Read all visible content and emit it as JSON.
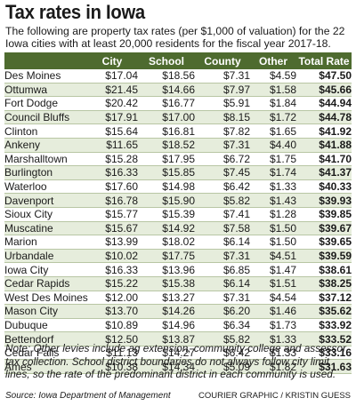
{
  "title": "Tax rates in Iowa",
  "subtitle": "The following are property tax rates (per $1,000 of valuation) for the 22 Iowa cities with at least 20,000 residents for the fiscal year 2017-18.",
  "colors": {
    "header_bg": "#4e6b2f",
    "alt_row": "#e6eddc",
    "header_text": "#ffffff"
  },
  "chart_data": {
    "type": "table",
    "columns": [
      "",
      "City",
      "School",
      "County",
      "Other",
      "Total Rate"
    ],
    "rows": [
      [
        "Des Moines",
        "$17.04",
        "$18.56",
        "$7.31",
        "$4.59",
        "$47.50"
      ],
      [
        "Ottumwa",
        "$21.45",
        "$14.66",
        "$7.97",
        "$1.58",
        "$45.66"
      ],
      [
        "Fort Dodge",
        "$20.42",
        "$16.77",
        "$5.91",
        "$1.84",
        "$44.94"
      ],
      [
        "Council Bluffs",
        "$17.91",
        "$17.00",
        "$8.15",
        "$1.72",
        "$44.78"
      ],
      [
        "Clinton",
        "$15.64",
        "$16.81",
        "$7.82",
        "$1.65",
        "$41.92"
      ],
      [
        "Ankeny",
        "$11.65",
        "$18.52",
        "$7.31",
        "$4.40",
        "$41.88"
      ],
      [
        "Marshalltown",
        "$15.28",
        "$17.95",
        "$6.72",
        "$1.75",
        "$41.70"
      ],
      [
        "Burlington",
        "$16.33",
        "$15.85",
        "$7.45",
        "$1.74",
        "$41.37"
      ],
      [
        "Waterloo",
        "$17.60",
        "$14.98",
        "$6.42",
        "$1.33",
        "$40.33"
      ],
      [
        "Davenport",
        "$16.78",
        "$15.90",
        "$5.82",
        "$1.43",
        "$39.93"
      ],
      [
        "Sioux City",
        "$15.77",
        "$15.39",
        "$7.41",
        "$1.28",
        "$39.85"
      ],
      [
        "Muscatine",
        "$15.67",
        "$14.92",
        "$7.58",
        "$1.50",
        "$39.67"
      ],
      [
        "Marion",
        "$13.99",
        "$18.02",
        "$6.14",
        "$1.50",
        "$39.65"
      ],
      [
        "Urbandale",
        "$10.02",
        "$17.75",
        "$7.31",
        "$4.51",
        "$39.59"
      ],
      [
        "Iowa City",
        "$16.33",
        "$13.96",
        "$6.85",
        "$1.47",
        "$38.61"
      ],
      [
        "Cedar Rapids",
        "$15.22",
        "$15.38",
        "$6.14",
        "$1.51",
        "$38.25"
      ],
      [
        "West Des Moines",
        "$12.00",
        "$13.27",
        "$7.31",
        "$4.54",
        "$37.12"
      ],
      [
        "Mason City",
        "$13.70",
        "$14.26",
        "$6.20",
        "$1.46",
        "$35.62"
      ],
      [
        "Dubuque",
        "$10.89",
        "$14.96",
        "$6.34",
        "$1.73",
        "$33.92"
      ],
      [
        "Bettendorf",
        "$12.50",
        "$13.87",
        "$5.82",
        "$1.33",
        "$33.52"
      ],
      [
        "Cedar Falls",
        "$11.13",
        "$14.27",
        "$6.42",
        "$1.33",
        "$33.16"
      ],
      [
        "Ames",
        "$10.38",
        "$14.34",
        "$5.09",
        "$1.82",
        "$31.63"
      ]
    ]
  },
  "note": "Note: Other levies include ag extension, community college and assessor tax collection. School district boundaries do not always follow city limit lines, so the rate of the predominant district in each community is used.",
  "source": "Source: Iowa Department of Management",
  "credit": "COURIER GRAPHIC / KRISTIN GUESS"
}
